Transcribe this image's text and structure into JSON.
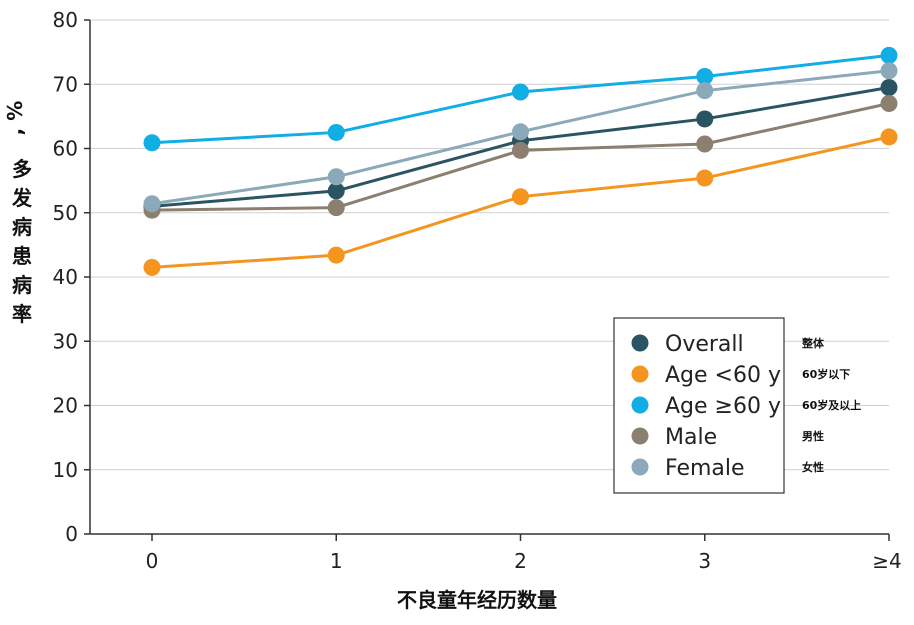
{
  "chart_data": {
    "type": "line",
    "categories": [
      "0",
      "1",
      "2",
      "3",
      "≥4"
    ],
    "ylabel": "多发病患病率，%",
    "xlabel": "不良童年经历数量",
    "ylim": [
      0,
      80
    ],
    "yticks": [
      "0",
      "10",
      "20",
      "30",
      "40",
      "50",
      "60",
      "70",
      "80"
    ],
    "grid": "horizontal",
    "legend_position": "bottom-right",
    "series": [
      {
        "name": "Overall",
        "note": "整体",
        "color": "#2b5462",
        "values": [
          51.0,
          53.4,
          61.2,
          64.6,
          69.5
        ]
      },
      {
        "name": "Age <60 y",
        "note": "60岁以下",
        "color": "#f4951f",
        "values": [
          41.5,
          43.4,
          52.5,
          55.4,
          61.8
        ]
      },
      {
        "name": "Age ≥60 y",
        "note": "60岁及以上",
        "color": "#10aee4",
        "values": [
          60.9,
          62.5,
          68.8,
          71.2,
          74.5
        ]
      },
      {
        "name": "Male",
        "note": "男性",
        "color": "#8b8070",
        "values": [
          50.4,
          50.8,
          59.7,
          60.7,
          67.0
        ]
      },
      {
        "name": "Female",
        "note": "女性",
        "color": "#8ba9b9",
        "values": [
          51.4,
          55.6,
          62.6,
          69.0,
          72.1
        ]
      }
    ]
  }
}
